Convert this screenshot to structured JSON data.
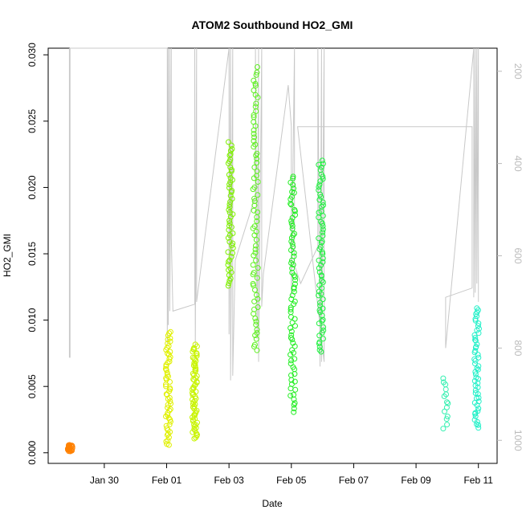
{
  "chart_data": {
    "type": "scatter",
    "title": "ATOM2 Southbound HO2_GMI",
    "xlabel": "Date",
    "ylabel": "HO2_GMI",
    "x_ticks": [
      "Jan 30",
      "Feb 01",
      "Feb 03",
      "Feb 05",
      "Feb 07",
      "Feb 09",
      "Feb 11"
    ],
    "x_tick_days": [
      30,
      32,
      34,
      36,
      38,
      40,
      42
    ],
    "xlim": [
      28.2,
      42.6
    ],
    "ylim": [
      -0.0008,
      0.0305
    ],
    "y_ticks": [
      0.0,
      0.005,
      0.01,
      0.015,
      0.02,
      0.025,
      0.03
    ],
    "y_tick_labels": [
      "0.000",
      "0.005",
      "0.010",
      "0.015",
      "0.020",
      "0.025",
      "0.030"
    ],
    "right_axis": {
      "reverse": true,
      "lim": [
        1050,
        150
      ],
      "ticks": [
        200,
        400,
        600,
        800,
        1000
      ],
      "tick_labels": [
        "200",
        "400",
        "600",
        "800",
        "1000"
      ],
      "color": "#bbbbbb"
    },
    "point_style": "open-circle",
    "grid": false,
    "series": [
      {
        "date": "Jan 29",
        "day": 28.9,
        "color": "#ff8000",
        "y_min": 0.0001,
        "y_max": 0.0006,
        "n": 25
      },
      {
        "date": "Feb 01",
        "day": 32.05,
        "color": "#e0f000",
        "y_min": 0.0005,
        "y_max": 0.0092,
        "n": 60
      },
      {
        "date": "Feb 01-02",
        "day": 32.9,
        "color": "#c8f400",
        "y_min": 0.001,
        "y_max": 0.0082,
        "n": 70
      },
      {
        "date": "Feb 03",
        "day": 34.05,
        "color": "#7ef000",
        "y_min": 0.0125,
        "y_max": 0.0235,
        "n": 55
      },
      {
        "date": "Feb 03-04",
        "day": 34.85,
        "color": "#5ef020",
        "y_min": 0.0075,
        "y_max": 0.0292,
        "n": 75
      },
      {
        "date": "Feb 05",
        "day": 36.05,
        "color": "#22ee22",
        "y_min": 0.003,
        "y_max": 0.021,
        "n": 80
      },
      {
        "date": "Feb 05-06",
        "day": 36.95,
        "color": "#20f040",
        "y_min": 0.0075,
        "y_max": 0.0222,
        "n": 70
      },
      {
        "date": "Feb 10",
        "day": 40.95,
        "color": "#33f0b0",
        "y_min": 0.0018,
        "y_max": 0.0058,
        "n": 14
      },
      {
        "date": "Feb 11",
        "day": 41.95,
        "color": "#22f0c8",
        "y_min": 0.0018,
        "y_max": 0.011,
        "n": 55
      }
    ],
    "pressure_trace": [
      {
        "day": 28.88,
        "p": 150
      },
      {
        "day": 28.88,
        "p": 820
      },
      {
        "day": 28.9,
        "p": 820
      },
      {
        "day": 28.9,
        "p": 150
      },
      {
        "day": 32.02,
        "p": 150
      },
      {
        "day": 32.02,
        "p": 790
      },
      {
        "day": 32.05,
        "p": 150
      },
      {
        "day": 32.05,
        "p": 750
      },
      {
        "day": 32.1,
        "p": 150
      },
      {
        "day": 32.1,
        "p": 720
      },
      {
        "day": 32.15,
        "p": 150
      },
      {
        "day": 32.15,
        "p": 560
      },
      {
        "day": 32.2,
        "p": 720
      },
      {
        "day": 32.9,
        "p": 705
      },
      {
        "day": 32.9,
        "p": 150
      },
      {
        "day": 32.92,
        "p": 800
      },
      {
        "day": 32.96,
        "p": 150
      },
      {
        "day": 32.96,
        "p": 700
      },
      {
        "day": 34.0,
        "p": 150
      },
      {
        "day": 34.0,
        "p": 770
      },
      {
        "day": 34.05,
        "p": 150
      },
      {
        "day": 34.05,
        "p": 870
      },
      {
        "day": 34.12,
        "p": 150
      },
      {
        "day": 34.12,
        "p": 860
      },
      {
        "day": 34.2,
        "p": 610
      },
      {
        "day": 34.85,
        "p": 470
      },
      {
        "day": 34.85,
        "p": 150
      },
      {
        "day": 34.9,
        "p": 780
      },
      {
        "day": 34.95,
        "p": 150
      },
      {
        "day": 34.95,
        "p": 830
      },
      {
        "day": 35.05,
        "p": 150
      },
      {
        "day": 35.05,
        "p": 710
      },
      {
        "day": 35.1,
        "p": 640
      },
      {
        "day": 35.9,
        "p": 230
      },
      {
        "day": 36.0,
        "p": 320
      },
      {
        "day": 36.0,
        "p": 690
      },
      {
        "day": 36.1,
        "p": 150
      },
      {
        "day": 36.1,
        "p": 620
      },
      {
        "day": 36.3,
        "p": 660
      },
      {
        "day": 36.85,
        "p": 580
      },
      {
        "day": 36.85,
        "p": 150
      },
      {
        "day": 36.92,
        "p": 840
      },
      {
        "day": 36.97,
        "p": 150
      },
      {
        "day": 36.97,
        "p": 830
      },
      {
        "day": 37.05,
        "p": 150
      },
      {
        "day": 37.05,
        "p": 830
      },
      {
        "day": 36.2,
        "p": 320
      },
      {
        "day": 41.8,
        "p": 320
      },
      {
        "day": 41.8,
        "p": 670
      },
      {
        "day": 40.95,
        "p": 690
      },
      {
        "day": 40.95,
        "p": 800
      },
      {
        "day": 41.85,
        "p": 150
      },
      {
        "day": 41.85,
        "p": 690
      },
      {
        "day": 41.9,
        "p": 150
      },
      {
        "day": 41.9,
        "p": 680
      },
      {
        "day": 41.95,
        "p": 150
      },
      {
        "day": 41.95,
        "p": 660
      },
      {
        "day": 42.0,
        "p": 150
      },
      {
        "day": 42.0,
        "p": 700
      }
    ]
  }
}
